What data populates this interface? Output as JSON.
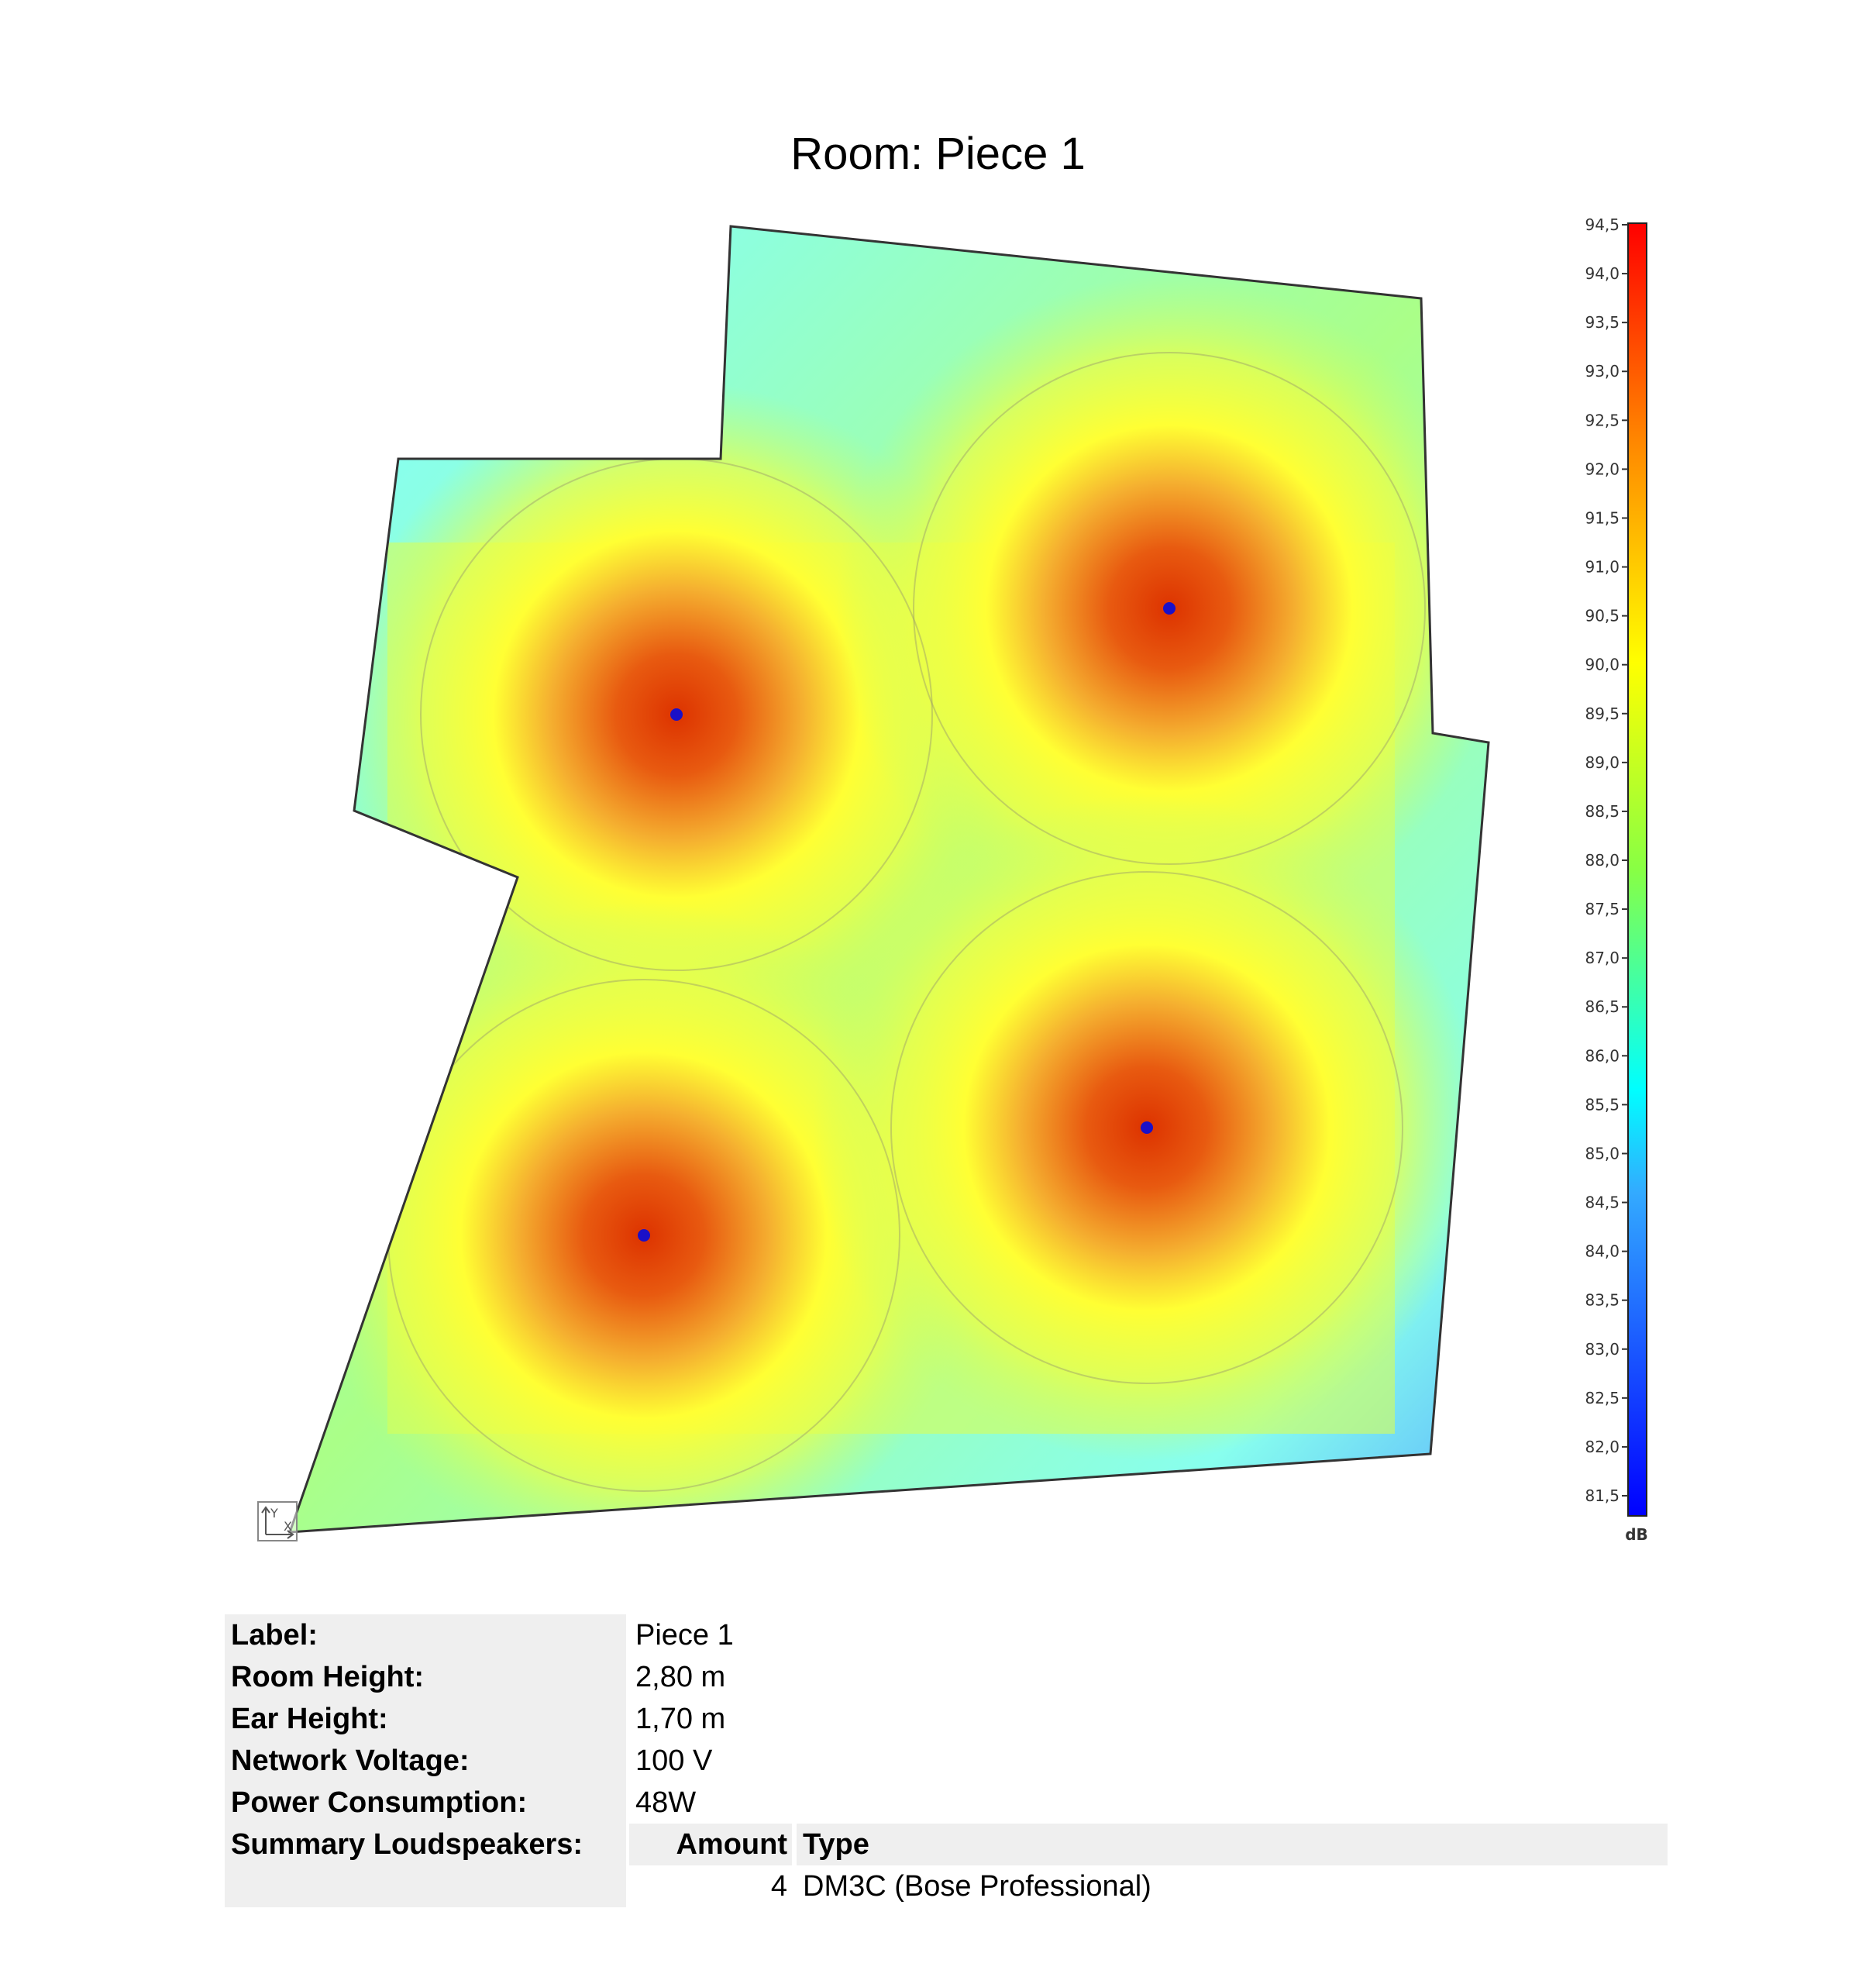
{
  "title": "Room: Piece 1",
  "colorbar": {
    "unit": "dB",
    "min": 81.5,
    "max": 94.5,
    "ticks": [
      "94,5",
      "94,0",
      "93,5",
      "93,0",
      "92,5",
      "92,0",
      "91,5",
      "91,0",
      "90,5",
      "90,0",
      "89,5",
      "89,0",
      "88,5",
      "88,0",
      "87,5",
      "87,0",
      "86,5",
      "86,0",
      "85,5",
      "85,0",
      "84,5",
      "84,0",
      "83,5",
      "83,0",
      "82,5",
      "82,0",
      "81,5"
    ],
    "colors": [
      "#0000ff",
      "#00e5ff",
      "#ffff00",
      "#ff0000"
    ]
  },
  "speakers": {
    "count": 4,
    "marker_color": "#1a10c8"
  },
  "axis_icon": {
    "y_label": "Y",
    "x_label": "X"
  },
  "info": {
    "rows": [
      {
        "label": "Label:",
        "value": "Piece 1"
      },
      {
        "label": "Room Height:",
        "value": "2,80 m"
      },
      {
        "label": "Ear Height:",
        "value": "1,70 m"
      },
      {
        "label": "Network Voltage:",
        "value": "100 V"
      },
      {
        "label": "Power Consumption:",
        "value": "48W"
      }
    ],
    "summary_label": "Summary Loudspeakers:",
    "summary_headers": {
      "amount": "Amount",
      "type": "Type"
    },
    "summary_rows": [
      {
        "amount": "4",
        "type": "DM3C (Bose Professional)"
      }
    ]
  }
}
